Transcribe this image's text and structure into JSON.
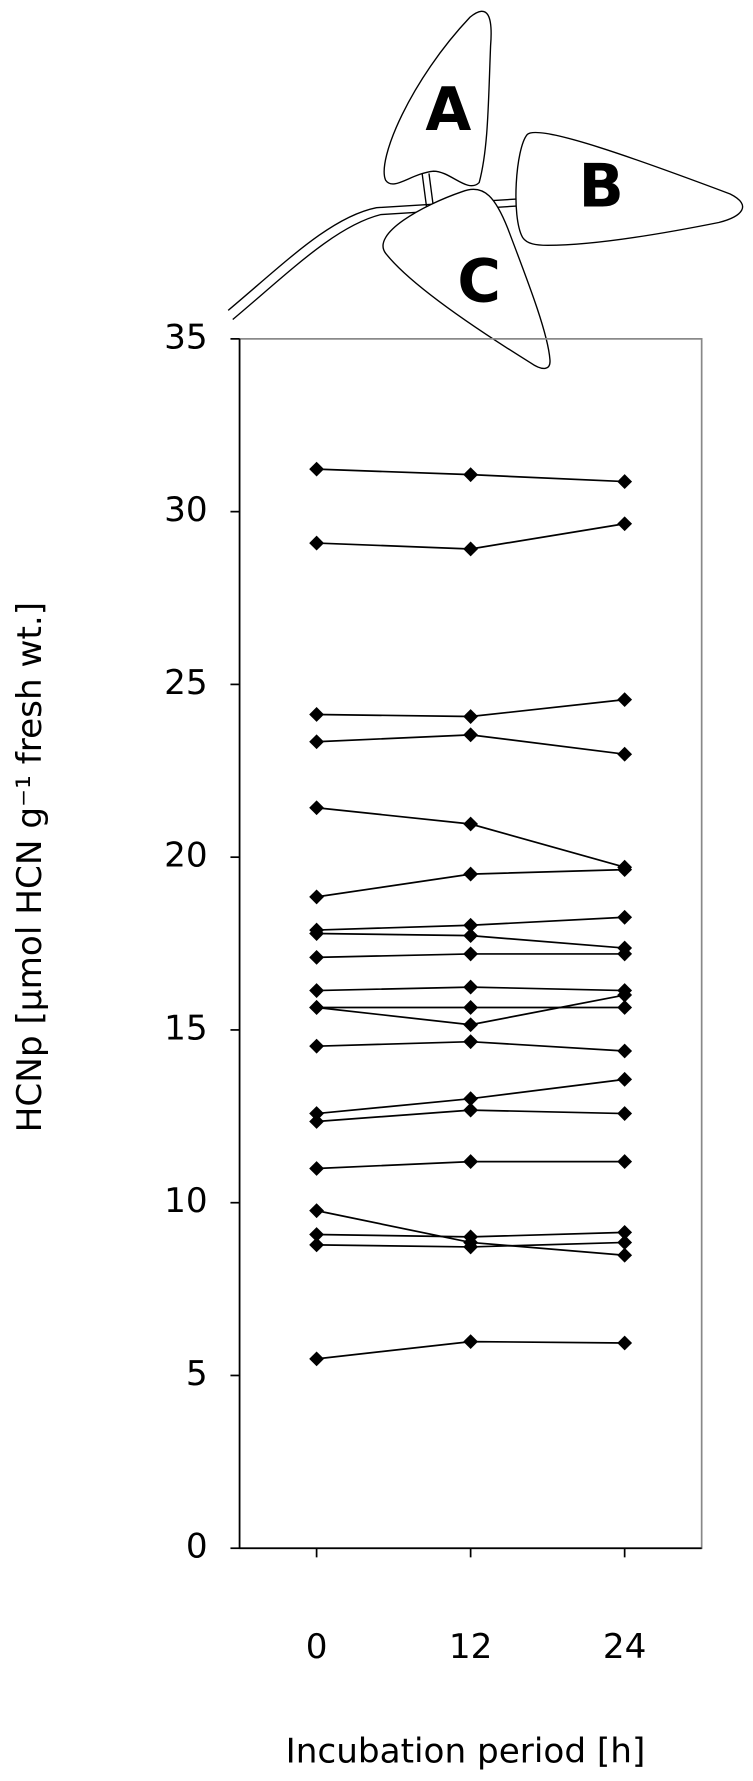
{
  "chart_data": {
    "type": "line",
    "x": [
      0,
      12,
      24
    ],
    "xlim": [
      -6,
      30
    ],
    "xticks": [
      0,
      12,
      24
    ],
    "ylim": [
      0,
      35
    ],
    "yticks": [
      0,
      5,
      10,
      15,
      20,
      25,
      30,
      35
    ],
    "xlabel": "Incubation period [h]",
    "ylabel": "HCNp [µmol HCN g⁻¹ fresh wt.]",
    "annotations": [
      "A",
      "B",
      "C"
    ],
    "color": "#000000",
    "series": [
      {
        "values": [
          31.23,
          31.07,
          30.87
        ]
      },
      {
        "values": [
          29.09,
          28.92,
          29.65
        ]
      },
      {
        "values": [
          24.13,
          24.07,
          24.56
        ]
      },
      {
        "values": [
          23.34,
          23.54,
          22.98
        ]
      },
      {
        "values": [
          21.43,
          20.96,
          19.71
        ]
      },
      {
        "values": [
          18.85,
          19.51,
          19.64
        ]
      },
      {
        "values": [
          17.89,
          18.03,
          18.26
        ]
      },
      {
        "values": [
          17.79,
          17.73,
          17.37
        ]
      },
      {
        "values": [
          17.1,
          17.2,
          17.2
        ]
      },
      {
        "values": [
          16.14,
          16.24,
          16.14
        ]
      },
      {
        "values": [
          15.65,
          15.15,
          16.01
        ]
      },
      {
        "values": [
          15.65,
          15.65,
          15.65
        ]
      },
      {
        "values": [
          14.53,
          14.66,
          14.39
        ]
      },
      {
        "values": [
          12.58,
          13.01,
          13.57
        ]
      },
      {
        "values": [
          12.35,
          12.68,
          12.58
        ]
      },
      {
        "values": [
          10.99,
          11.19,
          11.19
        ]
      },
      {
        "values": [
          9.77,
          8.85,
          8.48
        ]
      },
      {
        "values": [
          9.08,
          9.01,
          9.14
        ]
      },
      {
        "values": [
          8.78,
          8.72,
          8.85
        ]
      },
      {
        "values": [
          5.48,
          5.98,
          5.94
        ]
      }
    ]
  }
}
